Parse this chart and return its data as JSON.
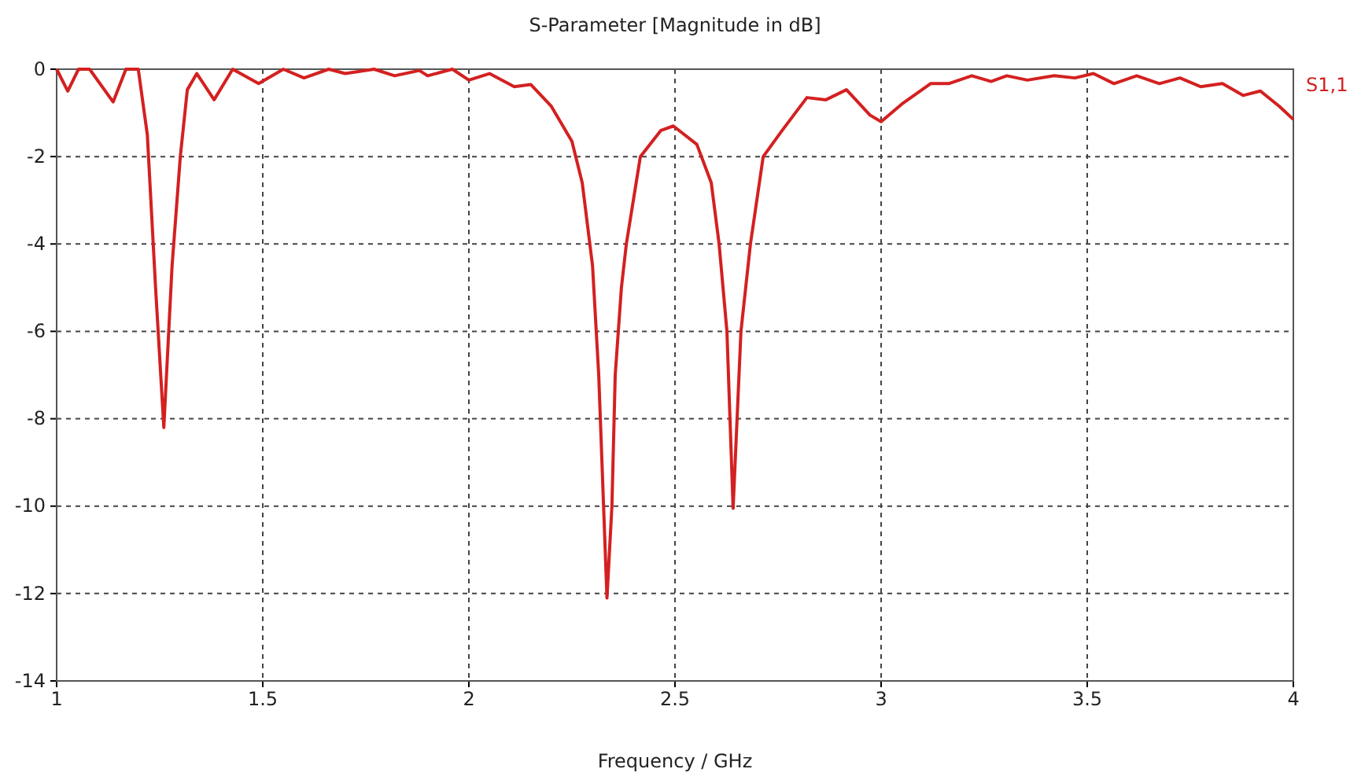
{
  "chart_data": {
    "type": "line",
    "title": "S-Parameter [Magnitude in dB]",
    "xlabel": "Frequency / GHz",
    "xlim": [
      1,
      4
    ],
    "xticks": [
      1,
      1.5,
      2,
      2.5,
      3,
      3.5,
      4
    ],
    "ylim": [
      -14,
      0
    ],
    "yticks": [
      -14,
      -12,
      -10,
      -8,
      -6,
      -4,
      -2,
      0
    ],
    "grid": true,
    "legend": false,
    "line_style": "solid",
    "marker": "none",
    "series": [
      {
        "name": "S1,1",
        "color": "#d42020",
        "x": [
          1.0,
          1.027,
          1.053,
          1.08,
          1.137,
          1.168,
          1.198,
          1.22,
          1.24,
          1.26,
          1.28,
          1.3,
          1.317,
          1.34,
          1.382,
          1.427,
          1.49,
          1.55,
          1.6,
          1.66,
          1.7,
          1.77,
          1.82,
          1.88,
          1.9,
          1.96,
          2.0,
          2.05,
          2.11,
          2.15,
          2.2,
          2.25,
          2.275,
          2.3,
          2.315,
          2.335,
          2.347,
          2.355,
          2.37,
          2.382,
          2.416,
          2.466,
          2.496,
          2.553,
          2.588,
          2.607,
          2.626,
          2.641,
          2.66,
          2.683,
          2.714,
          2.76,
          2.82,
          2.866,
          2.916,
          2.973,
          3.0,
          3.05,
          3.12,
          3.164,
          3.22,
          3.267,
          3.305,
          3.355,
          3.42,
          3.47,
          3.515,
          3.565,
          3.62,
          3.675,
          3.725,
          3.775,
          3.828,
          3.878,
          3.92,
          3.966,
          4.0
        ],
        "values": [
          0,
          -0.5,
          0,
          0,
          -0.75,
          0,
          0,
          -1.5,
          -5,
          -8.2,
          -4.5,
          -2,
          -0.47,
          -0.1,
          -0.7,
          0,
          -0.33,
          0,
          -0.2,
          0,
          -0.1,
          0,
          -0.15,
          -0.03,
          -0.15,
          0,
          -0.25,
          -0.1,
          -0.4,
          -0.35,
          -0.85,
          -1.65,
          -2.6,
          -4.5,
          -7,
          -12.1,
          -10,
          -7,
          -5,
          -4,
          -2,
          -1.4,
          -1.3,
          -1.72,
          -2.6,
          -4,
          -6,
          -10.05,
          -6,
          -4,
          -2,
          -1.4,
          -0.65,
          -0.7,
          -0.47,
          -1.05,
          -1.2,
          -0.8,
          -0.33,
          -0.33,
          -0.15,
          -0.28,
          -0.15,
          -0.25,
          -0.15,
          -0.2,
          -0.1,
          -0.33,
          -0.15,
          -0.33,
          -0.2,
          -0.4,
          -0.33,
          -0.6,
          -0.5,
          -0.85,
          -1.15
        ]
      }
    ]
  }
}
